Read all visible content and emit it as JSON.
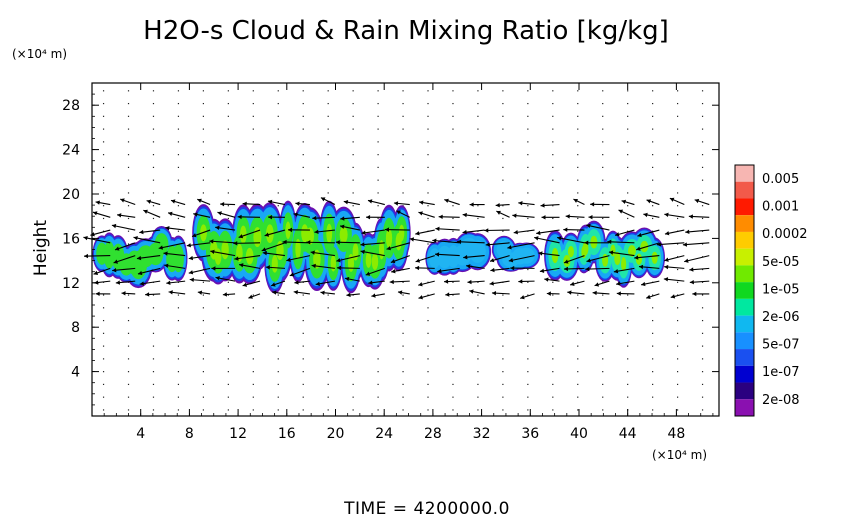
{
  "chart_data": {
    "type": "heatmap",
    "title": "H2O-s Cloud & Rain Mixing Ratio [kg/kg]",
    "ylabel": "Height",
    "y_unit": "(×10⁴ m)",
    "x_unit": "(×10⁴ m)",
    "xlim": [
      0,
      51.5
    ],
    "ylim": [
      0,
      30
    ],
    "x_ticks": [
      "4",
      "8",
      "12",
      "16",
      "20",
      "24",
      "28",
      "32",
      "36",
      "40",
      "44",
      "48"
    ],
    "y_ticks": [
      "4",
      "8",
      "12",
      "16",
      "20",
      "24",
      "28"
    ],
    "grid": true,
    "time_label": "TIME = 4200000.0",
    "colorbar": {
      "labels": [
        "0.005",
        "0.001",
        "0.0002",
        "5e-05",
        "1e-05",
        "2e-06",
        "5e-07",
        "1e-07",
        "2e-08"
      ],
      "colors": [
        "#f7b6b2",
        "#f25a4a",
        "#ff1a00",
        "#ff8c00",
        "#ffcc00",
        "#c8f000",
        "#70ea00",
        "#10d820",
        "#00e8a0",
        "#10b8f0",
        "#1890ff",
        "#1a50f0",
        "#0000d0",
        "#2a0080",
        "#8a10b0"
      ]
    },
    "cloud_regions": [
      {
        "x_range": [
          0.5,
          7.5
        ],
        "y_range": [
          12.5,
          16.5
        ],
        "level": "1e-05"
      },
      {
        "x_range": [
          9,
          26
        ],
        "y_range": [
          12,
          18.5
        ],
        "level": "1e-05"
      },
      {
        "x_range": [
          28,
          32
        ],
        "y_range": [
          13,
          16
        ],
        "level": "5e-07"
      },
      {
        "x_range": [
          33.5,
          36
        ],
        "y_range": [
          13.5,
          15.5
        ],
        "level": "5e-07"
      },
      {
        "x_range": [
          38,
          46.5
        ],
        "y_range": [
          12.5,
          17
        ],
        "level": "2e-06"
      }
    ]
  }
}
